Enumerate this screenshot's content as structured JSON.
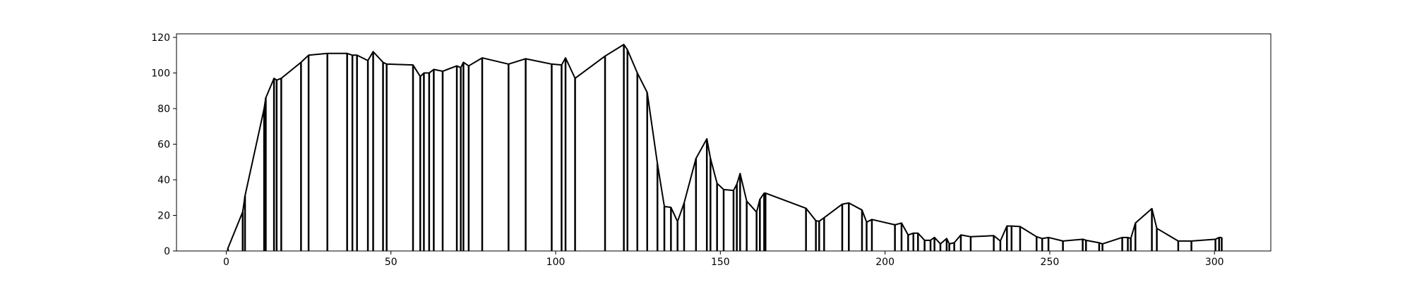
{
  "chart_data": {
    "type": "line",
    "color": "#000000",
    "stems": true,
    "x": [
      0.5,
      5,
      5.7,
      11.5,
      12,
      14.5,
      15.3,
      16.7,
      22.7,
      25,
      30.7,
      36.7,
      38.3,
      39.7,
      43,
      44.6,
      47.6,
      48.7,
      56.7,
      58.9,
      60,
      61.6,
      63,
      65.7,
      70,
      71.2,
      72,
      73.6,
      77.7,
      85.7,
      90.9,
      98.8,
      101.8,
      103,
      105.9,
      115,
      120.7,
      121.8,
      124.8,
      127.8,
      130.9,
      133,
      135,
      137,
      139,
      142.6,
      145.9,
      147,
      149,
      151,
      154,
      155,
      156,
      158,
      161,
      162,
      163.3,
      163.7,
      176,
      179,
      180,
      181.5,
      187,
      189,
      193,
      194.4,
      196,
      203,
      205,
      207,
      208.6,
      210,
      212,
      213.8,
      215,
      216.8,
      218.7,
      219.5,
      221,
      223,
      226,
      233,
      235,
      237,
      238.4,
      241,
      246,
      247.7,
      249.6,
      254,
      260,
      261,
      265,
      266,
      272,
      273.7,
      274.6,
      276,
      281,
      282.5,
      289,
      293,
      300.3,
      301.4,
      302.2
    ],
    "values": [
      1.5,
      22,
      31,
      80,
      86,
      97,
      96,
      97,
      106,
      110,
      111,
      111,
      110,
      110,
      107,
      112,
      106,
      105,
      104.5,
      98,
      100,
      100,
      102,
      101,
      104,
      103,
      106,
      104,
      108.5,
      105,
      108,
      105,
      104.5,
      108.5,
      97,
      109.5,
      116,
      113,
      100,
      89,
      49,
      25,
      24.5,
      16.5,
      27,
      52,
      63,
      52,
      38,
      34.5,
      34,
      37.5,
      43.5,
      28,
      21.8,
      29,
      32.5,
      32.5,
      24,
      17,
      16.7,
      18.7,
      26.3,
      27,
      23,
      16.2,
      17.7,
      14.7,
      15.7,
      9,
      10,
      10,
      6,
      6,
      7.6,
      4,
      7,
      4,
      4.6,
      9,
      8,
      8.6,
      5.6,
      14,
      14,
      13.7,
      8,
      7,
      7.6,
      5.6,
      6.6,
      6,
      4.6,
      4,
      7.6,
      7.6,
      7,
      15.7,
      23.8,
      12.7,
      5.6,
      5.6,
      6.6,
      7.6,
      7.6
    ],
    "xlim": [
      -15.1,
      317.1
    ],
    "xticks": [
      0,
      50,
      100,
      150,
      200,
      250,
      300
    ],
    "ylim": [
      0,
      122
    ],
    "yticks": [
      0,
      20,
      40,
      60,
      80,
      100,
      120
    ]
  }
}
